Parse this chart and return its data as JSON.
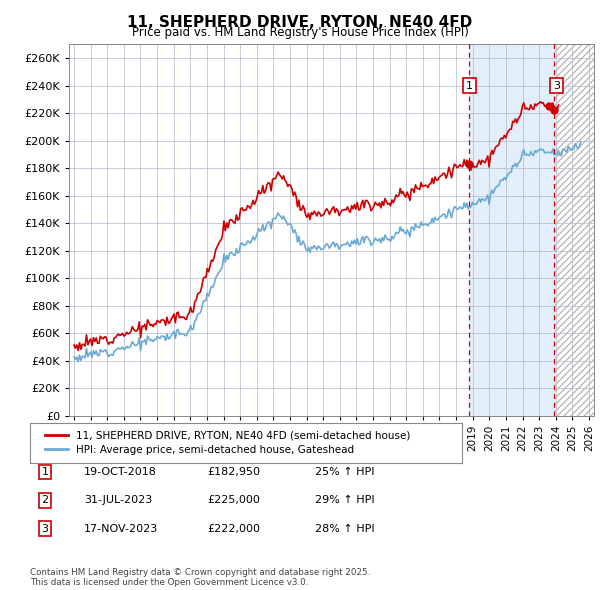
{
  "title": "11, SHEPHERD DRIVE, RYTON, NE40 4FD",
  "subtitle": "Price paid vs. HM Land Registry's House Price Index (HPI)",
  "ylim": [
    0,
    270000
  ],
  "yticks": [
    0,
    20000,
    40000,
    60000,
    80000,
    100000,
    120000,
    140000,
    160000,
    180000,
    200000,
    220000,
    240000,
    260000
  ],
  "legend_line1": "11, SHEPHERD DRIVE, RYTON, NE40 4FD (semi-detached house)",
  "legend_line2": "HPI: Average price, semi-detached house, Gateshead",
  "transactions": [
    {
      "num": 1,
      "date": "19-OCT-2018",
      "price": "£182,950",
      "hpi": "25% ↑ HPI",
      "year": 2018.8
    },
    {
      "num": 2,
      "date": "31-JUL-2023",
      "price": "£225,000",
      "hpi": "29% ↑ HPI",
      "year": 2023.58
    },
    {
      "num": 3,
      "date": "17-NOV-2023",
      "price": "£222,000",
      "hpi": "28% ↑ HPI",
      "year": 2023.88
    }
  ],
  "footnote": "Contains HM Land Registry data © Crown copyright and database right 2025.\nThis data is licensed under the Open Government Licence v3.0.",
  "hpi_color": "#6aaad4",
  "hpi_fill_color": "#d0e4f7",
  "price_color": "#cc0000",
  "plot_bg": "#ffffff",
  "grid_color": "#b0b8cc",
  "annotation_color": "#cc0000",
  "future_hatch_color": "#bbbbbb"
}
